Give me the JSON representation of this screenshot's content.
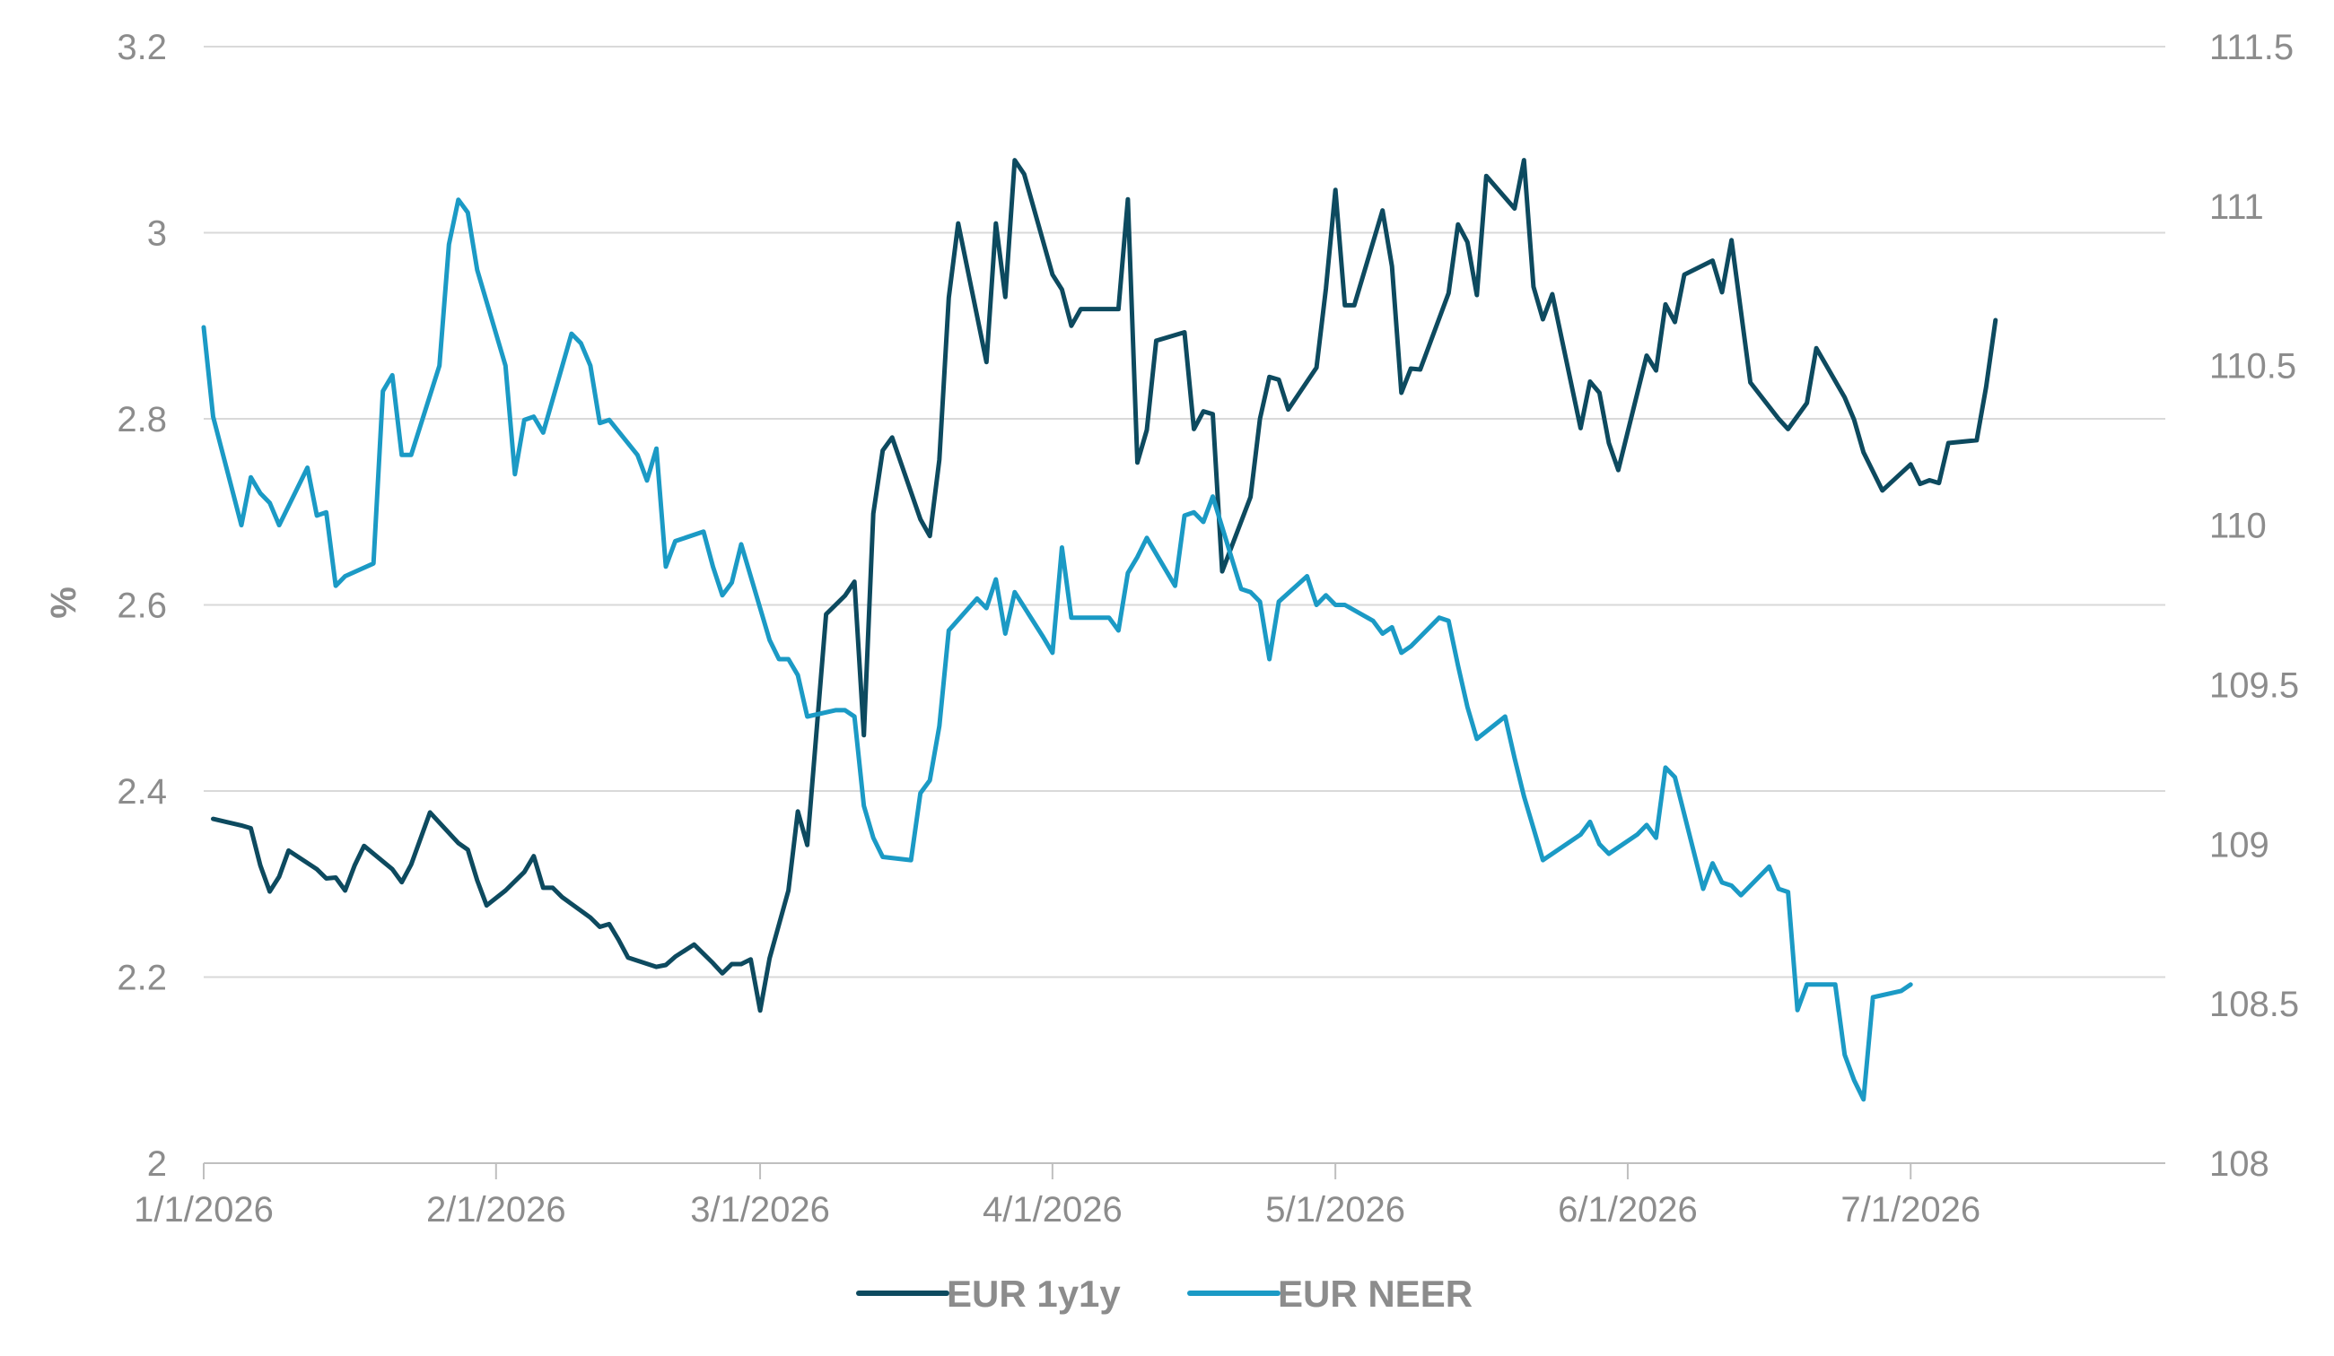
{
  "chart_data": {
    "type": "line",
    "title": "",
    "xlabel": "",
    "ylabel": "%",
    "y2label": "",
    "grid": true,
    "legend_position": "bottom",
    "x_ticks": [
      "1/1/2026",
      "2/1/2026",
      "3/1/2026",
      "4/1/2026",
      "5/1/2026",
      "6/1/2026",
      "7/1/2026"
    ],
    "xlim": [
      "2026-01-01",
      "2026-07-28"
    ],
    "ylim": [
      2,
      3.2
    ],
    "y_ticks": [
      "2",
      "2.2",
      "2.4",
      "2.6",
      "2.8",
      "3",
      "3.2"
    ],
    "y2lim": [
      108,
      111.5
    ],
    "y2_ticks": [
      "108",
      "108.5",
      "109",
      "109.5",
      "110",
      "110.5",
      "111",
      "111.5"
    ],
    "series": [
      {
        "name": "EUR 1y1y",
        "axis": "left",
        "color": "#0d4a5f",
        "points": [
          [
            "2026-01-02",
            2.37
          ],
          [
            "2026-01-05",
            2.363
          ],
          [
            "2026-01-06",
            2.36
          ],
          [
            "2026-01-07",
            2.32
          ],
          [
            "2026-01-08",
            2.292
          ],
          [
            "2026-01-09",
            2.308
          ],
          [
            "2026-01-10",
            2.336
          ],
          [
            "2026-01-13",
            2.316
          ],
          [
            "2026-01-14",
            2.306
          ],
          [
            "2026-01-15",
            2.307
          ],
          [
            "2026-01-16",
            2.293
          ],
          [
            "2026-01-17",
            2.32
          ],
          [
            "2026-01-18",
            2.341
          ],
          [
            "2026-01-21",
            2.316
          ],
          [
            "2026-01-22",
            2.302
          ],
          [
            "2026-01-23",
            2.321
          ],
          [
            "2026-01-25",
            2.377
          ],
          [
            "2026-01-28",
            2.344
          ],
          [
            "2026-01-29",
            2.337
          ],
          [
            "2026-01-30",
            2.304
          ],
          [
            "2026-01-31",
            2.277
          ],
          [
            "2026-02-02",
            2.293
          ],
          [
            "2026-02-04",
            2.313
          ],
          [
            "2026-02-05",
            2.33
          ],
          [
            "2026-02-06",
            2.296
          ],
          [
            "2026-02-07",
            2.296
          ],
          [
            "2026-02-08",
            2.286
          ],
          [
            "2026-02-11",
            2.264
          ],
          [
            "2026-02-12",
            2.254
          ],
          [
            "2026-02-13",
            2.257
          ],
          [
            "2026-02-14",
            2.24
          ],
          [
            "2026-02-15",
            2.221
          ],
          [
            "2026-02-18",
            2.211
          ],
          [
            "2026-02-19",
            2.213
          ],
          [
            "2026-02-20",
            2.222
          ],
          [
            "2026-02-22",
            2.235
          ],
          [
            "2026-02-24",
            2.215
          ],
          [
            "2026-02-25",
            2.204
          ],
          [
            "2026-02-26",
            2.214
          ],
          [
            "2026-02-27",
            2.214
          ],
          [
            "2026-02-28",
            2.219
          ],
          [
            "2026-03-01",
            2.164
          ],
          [
            "2026-03-02",
            2.22
          ],
          [
            "2026-03-04",
            2.293
          ],
          [
            "2026-03-05",
            2.378
          ],
          [
            "2026-03-06",
            2.342
          ],
          [
            "2026-03-08",
            2.59
          ],
          [
            "2026-03-10",
            2.61
          ],
          [
            "2026-03-11",
            2.625
          ],
          [
            "2026-03-12",
            2.46
          ],
          [
            "2026-03-13",
            2.698
          ],
          [
            "2026-03-14",
            2.766
          ],
          [
            "2026-03-15",
            2.78
          ],
          [
            "2026-03-18",
            2.692
          ],
          [
            "2026-03-19",
            2.674
          ],
          [
            "2026-03-20",
            2.756
          ],
          [
            "2026-03-21",
            2.93
          ],
          [
            "2026-03-22",
            3.01
          ],
          [
            "2026-03-25",
            2.861
          ],
          [
            "2026-03-26",
            3.01
          ],
          [
            "2026-03-27",
            2.931
          ],
          [
            "2026-03-28",
            3.078
          ],
          [
            "2026-03-29",
            3.063
          ],
          [
            "2026-04-01",
            2.955
          ],
          [
            "2026-04-02",
            2.939
          ],
          [
            "2026-04-03",
            2.9
          ],
          [
            "2026-04-04",
            2.918
          ],
          [
            "2026-04-08",
            2.918
          ],
          [
            "2026-04-09",
            3.036
          ],
          [
            "2026-04-10",
            2.753
          ],
          [
            "2026-04-11",
            2.788
          ],
          [
            "2026-04-12",
            2.884
          ],
          [
            "2026-04-15",
            2.893
          ],
          [
            "2026-04-16",
            2.789
          ],
          [
            "2026-04-17",
            2.808
          ],
          [
            "2026-04-18",
            2.805
          ],
          [
            "2026-04-19",
            2.636
          ],
          [
            "2026-04-22",
            2.716
          ],
          [
            "2026-04-23",
            2.8
          ],
          [
            "2026-04-24",
            2.845
          ],
          [
            "2026-04-25",
            2.842
          ],
          [
            "2026-04-26",
            2.81
          ],
          [
            "2026-04-29",
            2.855
          ],
          [
            "2026-04-30",
            2.94
          ],
          [
            "2026-05-01",
            3.046
          ],
          [
            "2026-05-02",
            2.922
          ],
          [
            "2026-05-03",
            2.922
          ],
          [
            "2026-05-06",
            3.024
          ],
          [
            "2026-05-07",
            2.964
          ],
          [
            "2026-05-08",
            2.828
          ],
          [
            "2026-05-09",
            2.854
          ],
          [
            "2026-05-10",
            2.853
          ],
          [
            "2026-05-13",
            2.935
          ],
          [
            "2026-05-14",
            3.009
          ],
          [
            "2026-05-15",
            2.99
          ],
          [
            "2026-05-16",
            2.933
          ],
          [
            "2026-05-17",
            3.061
          ],
          [
            "2026-05-20",
            3.026
          ],
          [
            "2026-05-21",
            3.078
          ],
          [
            "2026-05-22",
            2.942
          ],
          [
            "2026-05-23",
            2.907
          ],
          [
            "2026-05-24",
            2.934
          ],
          [
            "2026-05-27",
            2.79
          ],
          [
            "2026-05-28",
            2.84
          ],
          [
            "2026-05-29",
            2.828
          ],
          [
            "2026-05-30",
            2.774
          ],
          [
            "2026-05-31",
            2.745
          ],
          [
            "2026-06-03",
            2.868
          ],
          [
            "2026-06-04",
            2.852
          ],
          [
            "2026-06-05",
            2.923
          ],
          [
            "2026-06-06",
            2.904
          ],
          [
            "2026-06-07",
            2.955
          ],
          [
            "2026-06-10",
            2.97
          ],
          [
            "2026-06-11",
            2.936
          ],
          [
            "2026-06-12",
            2.992
          ],
          [
            "2026-06-14",
            2.839
          ],
          [
            "2026-06-17",
            2.8
          ],
          [
            "2026-06-18",
            2.789
          ],
          [
            "2026-06-20",
            2.817
          ],
          [
            "2026-06-21",
            2.876
          ],
          [
            "2026-06-24",
            2.823
          ],
          [
            "2026-06-25",
            2.799
          ],
          [
            "2026-06-26",
            2.764
          ],
          [
            "2026-06-28",
            2.723
          ],
          [
            "2026-07-01",
            2.751
          ],
          [
            "2026-07-02",
            2.73
          ],
          [
            "2026-07-03",
            2.734
          ],
          [
            "2026-07-04",
            2.731
          ],
          [
            "2026-07-05",
            2.774
          ],
          [
            "2026-07-08",
            2.777
          ],
          [
            "2026-07-09",
            2.834
          ],
          [
            "2026-07-10",
            2.906
          ]
        ]
      },
      {
        "name": "EUR NEER",
        "axis": "right",
        "color": "#1b9ac5",
        "points": [
          [
            "2026-01-01",
            110.62
          ],
          [
            "2026-01-02",
            110.34
          ],
          [
            "2026-01-05",
            110.0
          ],
          [
            "2026-01-06",
            110.15
          ],
          [
            "2026-01-07",
            110.1
          ],
          [
            "2026-01-08",
            110.07
          ],
          [
            "2026-01-09",
            110.0
          ],
          [
            "2026-01-12",
            110.18
          ],
          [
            "2026-01-13",
            110.03
          ],
          [
            "2026-01-14",
            110.04
          ],
          [
            "2026-01-15",
            109.81
          ],
          [
            "2026-01-16",
            109.84
          ],
          [
            "2026-01-19",
            109.88
          ],
          [
            "2026-01-20",
            110.42
          ],
          [
            "2026-01-21",
            110.47
          ],
          [
            "2026-01-22",
            110.22
          ],
          [
            "2026-01-23",
            110.22
          ],
          [
            "2026-01-26",
            110.5
          ],
          [
            "2026-01-27",
            110.88
          ],
          [
            "2026-01-28",
            111.02
          ],
          [
            "2026-01-29",
            110.98
          ],
          [
            "2026-01-30",
            110.8
          ],
          [
            "2026-02-02",
            110.5
          ],
          [
            "2026-02-03",
            110.16
          ],
          [
            "2026-02-04",
            110.33
          ],
          [
            "2026-02-05",
            110.34
          ],
          [
            "2026-02-06",
            110.29
          ],
          [
            "2026-02-09",
            110.6
          ],
          [
            "2026-02-10",
            110.57
          ],
          [
            "2026-02-11",
            110.5
          ],
          [
            "2026-02-12",
            110.32
          ],
          [
            "2026-02-13",
            110.33
          ],
          [
            "2026-02-16",
            110.22
          ],
          [
            "2026-02-17",
            110.14
          ],
          [
            "2026-02-18",
            110.24
          ],
          [
            "2026-02-19",
            109.87
          ],
          [
            "2026-02-20",
            109.95
          ],
          [
            "2026-02-23",
            109.98
          ],
          [
            "2026-02-24",
            109.87
          ],
          [
            "2026-02-25",
            109.78
          ],
          [
            "2026-02-26",
            109.82
          ],
          [
            "2026-02-27",
            109.94
          ],
          [
            "2026-03-02",
            109.64
          ],
          [
            "2026-03-03",
            109.58
          ],
          [
            "2026-03-04",
            109.58
          ],
          [
            "2026-03-05",
            109.53
          ],
          [
            "2026-03-06",
            109.4
          ],
          [
            "2026-03-09",
            109.42
          ],
          [
            "2026-03-10",
            109.42
          ],
          [
            "2026-03-11",
            109.4
          ],
          [
            "2026-03-12",
            109.12
          ],
          [
            "2026-03-13",
            109.02
          ],
          [
            "2026-03-14",
            108.96
          ],
          [
            "2026-03-17",
            108.95
          ],
          [
            "2026-03-18",
            109.16
          ],
          [
            "2026-03-19",
            109.2
          ],
          [
            "2026-03-20",
            109.37
          ],
          [
            "2026-03-21",
            109.67
          ],
          [
            "2026-03-24",
            109.77
          ],
          [
            "2026-03-25",
            109.74
          ],
          [
            "2026-03-26",
            109.83
          ],
          [
            "2026-03-27",
            109.66
          ],
          [
            "2026-03-28",
            109.79
          ],
          [
            "2026-03-31",
            109.65
          ],
          [
            "2026-04-01",
            109.6
          ],
          [
            "2026-04-02",
            109.93
          ],
          [
            "2026-04-03",
            109.71
          ],
          [
            "2026-04-06",
            109.71
          ],
          [
            "2026-04-07",
            109.71
          ],
          [
            "2026-04-08",
            109.67
          ],
          [
            "2026-04-09",
            109.85
          ],
          [
            "2026-04-10",
            109.9
          ],
          [
            "2026-04-11",
            109.96
          ],
          [
            "2026-04-14",
            109.81
          ],
          [
            "2026-04-15",
            110.03
          ],
          [
            "2026-04-16",
            110.04
          ],
          [
            "2026-04-17",
            110.01
          ],
          [
            "2026-04-18",
            110.09
          ],
          [
            "2026-04-21",
            109.8
          ],
          [
            "2026-04-22",
            109.79
          ],
          [
            "2026-04-23",
            109.76
          ],
          [
            "2026-04-24",
            109.58
          ],
          [
            "2026-04-25",
            109.76
          ],
          [
            "2026-04-28",
            109.84
          ],
          [
            "2026-04-29",
            109.75
          ],
          [
            "2026-04-30",
            109.78
          ],
          [
            "2026-05-01",
            109.75
          ],
          [
            "2026-05-02",
            109.75
          ],
          [
            "2026-05-05",
            109.7
          ],
          [
            "2026-05-06",
            109.66
          ],
          [
            "2026-05-07",
            109.68
          ],
          [
            "2026-05-08",
            109.6
          ],
          [
            "2026-05-09",
            109.62
          ],
          [
            "2026-05-12",
            109.71
          ],
          [
            "2026-05-13",
            109.7
          ],
          [
            "2026-05-14",
            109.56
          ],
          [
            "2026-05-15",
            109.43
          ],
          [
            "2026-05-16",
            109.33
          ],
          [
            "2026-05-19",
            109.4
          ],
          [
            "2026-05-20",
            109.27
          ],
          [
            "2026-05-21",
            109.15
          ],
          [
            "2026-05-22",
            109.05
          ],
          [
            "2026-05-23",
            108.95
          ],
          [
            "2026-05-26",
            109.01
          ],
          [
            "2026-05-27",
            109.03
          ],
          [
            "2026-05-28",
            109.07
          ],
          [
            "2026-05-29",
            109.0
          ],
          [
            "2026-05-30",
            108.97
          ],
          [
            "2026-06-02",
            109.03
          ],
          [
            "2026-06-03",
            109.06
          ],
          [
            "2026-06-04",
            109.02
          ],
          [
            "2026-06-05",
            109.24
          ],
          [
            "2026-06-06",
            109.21
          ],
          [
            "2026-06-09",
            108.86
          ],
          [
            "2026-06-10",
            108.94
          ],
          [
            "2026-06-11",
            108.88
          ],
          [
            "2026-06-12",
            108.87
          ],
          [
            "2026-06-13",
            108.84
          ],
          [
            "2026-06-16",
            108.93
          ],
          [
            "2026-06-17",
            108.86
          ],
          [
            "2026-06-18",
            108.85
          ],
          [
            "2026-06-19",
            108.48
          ],
          [
            "2026-06-20",
            108.56
          ],
          [
            "2026-06-23",
            108.56
          ],
          [
            "2026-06-24",
            108.34
          ],
          [
            "2026-06-25",
            108.26
          ],
          [
            "2026-06-26",
            108.2
          ],
          [
            "2026-06-27",
            108.52
          ],
          [
            "2026-06-30",
            108.54
          ],
          [
            "2026-07-01",
            108.56
          ]
        ]
      }
    ]
  }
}
